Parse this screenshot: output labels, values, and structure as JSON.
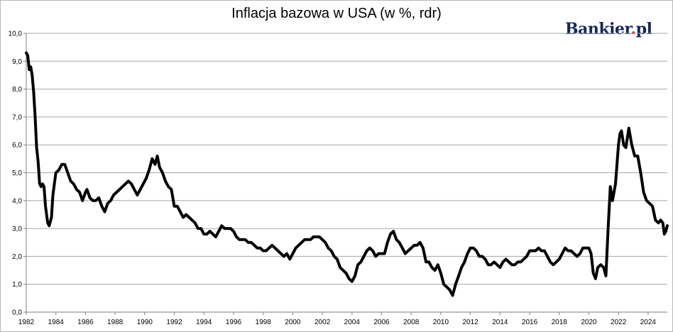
{
  "chart_data": {
    "type": "line",
    "title": "Inflacja bazowa w USA (w %, rdr)",
    "xlabel": "",
    "ylabel": "",
    "brand": {
      "name": "Bankier",
      "dot": ".",
      "tld": "pl"
    },
    "xlim": [
      1982,
      2025.3
    ],
    "ylim": [
      0,
      10
    ],
    "y_ticks": [
      "0,0",
      "1,0",
      "2,0",
      "3,0",
      "4,0",
      "5,0",
      "6,0",
      "7,0",
      "8,0",
      "9,0",
      "10,0"
    ],
    "x_ticks": [
      "1982",
      "1984",
      "1986",
      "1988",
      "1990",
      "1992",
      "1994",
      "1996",
      "1998",
      "2000",
      "2002",
      "2004",
      "2006",
      "2008",
      "2010",
      "2012",
      "2014",
      "2016",
      "2018",
      "2020",
      "2022",
      "2024"
    ],
    "grid": "horizontal",
    "line_color": "#000000",
    "series": [
      {
        "name": "",
        "points": [
          [
            1982.0,
            9.3
          ],
          [
            1982.1,
            9.2
          ],
          [
            1982.2,
            8.7
          ],
          [
            1982.3,
            8.8
          ],
          [
            1982.4,
            8.5
          ],
          [
            1982.5,
            7.9
          ],
          [
            1982.6,
            7.0
          ],
          [
            1982.7,
            5.9
          ],
          [
            1982.8,
            5.4
          ],
          [
            1982.9,
            4.6
          ],
          [
            1983.0,
            4.5
          ],
          [
            1983.1,
            4.6
          ],
          [
            1983.2,
            4.5
          ],
          [
            1983.3,
            3.8
          ],
          [
            1983.45,
            3.2
          ],
          [
            1983.55,
            3.1
          ],
          [
            1983.7,
            3.4
          ],
          [
            1983.8,
            4.2
          ],
          [
            1983.9,
            4.6
          ],
          [
            1984.0,
            5.0
          ],
          [
            1984.2,
            5.1
          ],
          [
            1984.4,
            5.3
          ],
          [
            1984.6,
            5.3
          ],
          [
            1984.8,
            5.0
          ],
          [
            1985.0,
            4.7
          ],
          [
            1985.2,
            4.6
          ],
          [
            1985.4,
            4.4
          ],
          [
            1985.6,
            4.3
          ],
          [
            1985.8,
            4.0
          ],
          [
            1986.0,
            4.3
          ],
          [
            1986.1,
            4.4
          ],
          [
            1986.3,
            4.1
          ],
          [
            1986.5,
            4.0
          ],
          [
            1986.7,
            4.0
          ],
          [
            1986.9,
            4.1
          ],
          [
            1987.1,
            3.8
          ],
          [
            1987.3,
            3.6
          ],
          [
            1987.5,
            3.9
          ],
          [
            1987.7,
            4.0
          ],
          [
            1987.9,
            4.2
          ],
          [
            1988.1,
            4.3
          ],
          [
            1988.3,
            4.4
          ],
          [
            1988.5,
            4.5
          ],
          [
            1988.7,
            4.6
          ],
          [
            1988.9,
            4.7
          ],
          [
            1989.1,
            4.6
          ],
          [
            1989.3,
            4.4
          ],
          [
            1989.5,
            4.2
          ],
          [
            1989.7,
            4.4
          ],
          [
            1989.9,
            4.6
          ],
          [
            1990.1,
            4.8
          ],
          [
            1990.3,
            5.1
          ],
          [
            1990.5,
            5.5
          ],
          [
            1990.7,
            5.3
          ],
          [
            1990.85,
            5.6
          ],
          [
            1991.0,
            5.2
          ],
          [
            1991.2,
            5.0
          ],
          [
            1991.4,
            4.7
          ],
          [
            1991.6,
            4.5
          ],
          [
            1991.8,
            4.4
          ],
          [
            1992.0,
            3.8
          ],
          [
            1992.2,
            3.8
          ],
          [
            1992.4,
            3.6
          ],
          [
            1992.6,
            3.4
          ],
          [
            1992.8,
            3.5
          ],
          [
            1993.0,
            3.4
          ],
          [
            1993.2,
            3.3
          ],
          [
            1993.4,
            3.2
          ],
          [
            1993.6,
            3.0
          ],
          [
            1993.8,
            3.0
          ],
          [
            1994.0,
            2.8
          ],
          [
            1994.2,
            2.8
          ],
          [
            1994.4,
            2.9
          ],
          [
            1994.6,
            2.8
          ],
          [
            1994.8,
            2.7
          ],
          [
            1995.0,
            2.9
          ],
          [
            1995.2,
            3.1
          ],
          [
            1995.4,
            3.0
          ],
          [
            1995.6,
            3.0
          ],
          [
            1995.8,
            3.0
          ],
          [
            1996.0,
            2.9
          ],
          [
            1996.2,
            2.7
          ],
          [
            1996.4,
            2.6
          ],
          [
            1996.6,
            2.6
          ],
          [
            1996.8,
            2.6
          ],
          [
            1997.0,
            2.5
          ],
          [
            1997.2,
            2.5
          ],
          [
            1997.4,
            2.4
          ],
          [
            1997.6,
            2.3
          ],
          [
            1997.8,
            2.3
          ],
          [
            1998.0,
            2.2
          ],
          [
            1998.2,
            2.2
          ],
          [
            1998.4,
            2.3
          ],
          [
            1998.6,
            2.4
          ],
          [
            1998.8,
            2.3
          ],
          [
            1999.0,
            2.2
          ],
          [
            1999.2,
            2.1
          ],
          [
            1999.4,
            2.0
          ],
          [
            1999.6,
            2.1
          ],
          [
            1999.8,
            1.9
          ],
          [
            2000.0,
            2.1
          ],
          [
            2000.2,
            2.3
          ],
          [
            2000.4,
            2.4
          ],
          [
            2000.6,
            2.5
          ],
          [
            2000.8,
            2.6
          ],
          [
            2001.0,
            2.6
          ],
          [
            2001.2,
            2.6
          ],
          [
            2001.4,
            2.7
          ],
          [
            2001.6,
            2.7
          ],
          [
            2001.8,
            2.7
          ],
          [
            2002.0,
            2.6
          ],
          [
            2002.2,
            2.5
          ],
          [
            2002.4,
            2.3
          ],
          [
            2002.6,
            2.2
          ],
          [
            2002.8,
            2.0
          ],
          [
            2003.0,
            1.9
          ],
          [
            2003.2,
            1.6
          ],
          [
            2003.4,
            1.5
          ],
          [
            2003.6,
            1.4
          ],
          [
            2003.8,
            1.2
          ],
          [
            2004.0,
            1.1
          ],
          [
            2004.2,
            1.3
          ],
          [
            2004.4,
            1.7
          ],
          [
            2004.6,
            1.8
          ],
          [
            2004.8,
            2.0
          ],
          [
            2005.0,
            2.2
          ],
          [
            2005.2,
            2.3
          ],
          [
            2005.4,
            2.2
          ],
          [
            2005.6,
            2.0
          ],
          [
            2005.8,
            2.1
          ],
          [
            2006.0,
            2.1
          ],
          [
            2006.2,
            2.1
          ],
          [
            2006.4,
            2.5
          ],
          [
            2006.6,
            2.8
          ],
          [
            2006.8,
            2.9
          ],
          [
            2007.0,
            2.6
          ],
          [
            2007.2,
            2.5
          ],
          [
            2007.4,
            2.3
          ],
          [
            2007.6,
            2.1
          ],
          [
            2007.8,
            2.2
          ],
          [
            2008.0,
            2.3
          ],
          [
            2008.2,
            2.4
          ],
          [
            2008.4,
            2.4
          ],
          [
            2008.6,
            2.5
          ],
          [
            2008.8,
            2.3
          ],
          [
            2009.0,
            1.8
          ],
          [
            2009.2,
            1.8
          ],
          [
            2009.4,
            1.6
          ],
          [
            2009.6,
            1.5
          ],
          [
            2009.8,
            1.7
          ],
          [
            2010.0,
            1.4
          ],
          [
            2010.2,
            1.0
          ],
          [
            2010.4,
            0.9
          ],
          [
            2010.6,
            0.8
          ],
          [
            2010.8,
            0.6
          ],
          [
            2011.0,
            1.0
          ],
          [
            2011.2,
            1.3
          ],
          [
            2011.4,
            1.6
          ],
          [
            2011.6,
            1.8
          ],
          [
            2011.8,
            2.1
          ],
          [
            2012.0,
            2.3
          ],
          [
            2012.2,
            2.3
          ],
          [
            2012.4,
            2.2
          ],
          [
            2012.6,
            2.0
          ],
          [
            2012.8,
            2.0
          ],
          [
            2013.0,
            1.9
          ],
          [
            2013.2,
            1.7
          ],
          [
            2013.4,
            1.7
          ],
          [
            2013.6,
            1.8
          ],
          [
            2013.8,
            1.7
          ],
          [
            2014.0,
            1.6
          ],
          [
            2014.2,
            1.8
          ],
          [
            2014.4,
            1.9
          ],
          [
            2014.6,
            1.8
          ],
          [
            2014.8,
            1.7
          ],
          [
            2015.0,
            1.7
          ],
          [
            2015.2,
            1.8
          ],
          [
            2015.4,
            1.8
          ],
          [
            2015.6,
            1.9
          ],
          [
            2015.8,
            2.0
          ],
          [
            2016.0,
            2.2
          ],
          [
            2016.2,
            2.2
          ],
          [
            2016.4,
            2.2
          ],
          [
            2016.6,
            2.3
          ],
          [
            2016.8,
            2.2
          ],
          [
            2017.0,
            2.2
          ],
          [
            2017.2,
            2.0
          ],
          [
            2017.4,
            1.8
          ],
          [
            2017.6,
            1.7
          ],
          [
            2017.8,
            1.8
          ],
          [
            2018.0,
            1.9
          ],
          [
            2018.2,
            2.1
          ],
          [
            2018.4,
            2.3
          ],
          [
            2018.6,
            2.2
          ],
          [
            2018.8,
            2.2
          ],
          [
            2019.0,
            2.1
          ],
          [
            2019.2,
            2.0
          ],
          [
            2019.4,
            2.1
          ],
          [
            2019.6,
            2.3
          ],
          [
            2019.8,
            2.3
          ],
          [
            2020.0,
            2.3
          ],
          [
            2020.15,
            2.1
          ],
          [
            2020.3,
            1.4
          ],
          [
            2020.45,
            1.2
          ],
          [
            2020.6,
            1.6
          ],
          [
            2020.8,
            1.7
          ],
          [
            2021.0,
            1.6
          ],
          [
            2021.15,
            1.3
          ],
          [
            2021.3,
            3.0
          ],
          [
            2021.45,
            4.5
          ],
          [
            2021.6,
            4.0
          ],
          [
            2021.8,
            4.6
          ],
          [
            2022.0,
            6.0
          ],
          [
            2022.1,
            6.4
          ],
          [
            2022.2,
            6.5
          ],
          [
            2022.35,
            6.0
          ],
          [
            2022.5,
            5.9
          ],
          [
            2022.7,
            6.6
          ],
          [
            2022.9,
            6.0
          ],
          [
            2023.1,
            5.6
          ],
          [
            2023.3,
            5.6
          ],
          [
            2023.5,
            5.0
          ],
          [
            2023.7,
            4.3
          ],
          [
            2023.9,
            4.0
          ],
          [
            2024.1,
            3.9
          ],
          [
            2024.3,
            3.8
          ],
          [
            2024.5,
            3.3
          ],
          [
            2024.7,
            3.2
          ],
          [
            2024.85,
            3.3
          ],
          [
            2025.0,
            3.2
          ],
          [
            2025.1,
            2.8
          ],
          [
            2025.2,
            2.9
          ],
          [
            2025.3,
            3.1
          ]
        ]
      }
    ]
  }
}
